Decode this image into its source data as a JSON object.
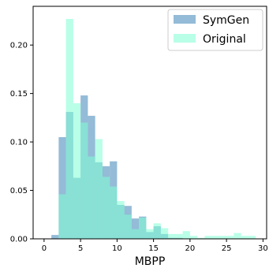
{
  "chart_data": {
    "type": "bar",
    "subtype": "overlaid-histogram",
    "xlabel": "MBPP",
    "ylabel": "",
    "xlim": [
      -1.5,
      30.5
    ],
    "ylim": [
      0,
      0.24
    ],
    "xticks": [
      0,
      5,
      10,
      15,
      20,
      25,
      30
    ],
    "yticks": [
      0.0,
      0.05,
      0.1,
      0.15,
      0.2
    ],
    "grid": false,
    "legend_position": "top-right",
    "bin_width": 1,
    "series": [
      {
        "name": "SymGen",
        "color": "#5b97c2",
        "opacity": 0.65,
        "bins": [
          {
            "x0": 1,
            "value": 0.004
          },
          {
            "x0": 2,
            "value": 0.105
          },
          {
            "x0": 3,
            "value": 0.131
          },
          {
            "x0": 4,
            "value": 0.063
          },
          {
            "x0": 5,
            "value": 0.148
          },
          {
            "x0": 6,
            "value": 0.127
          },
          {
            "x0": 7,
            "value": 0.079
          },
          {
            "x0": 8,
            "value": 0.075
          },
          {
            "x0": 9,
            "value": 0.08
          },
          {
            "x0": 10,
            "value": 0.035
          },
          {
            "x0": 11,
            "value": 0.034
          },
          {
            "x0": 12,
            "value": 0.021
          },
          {
            "x0": 13,
            "value": 0.023
          },
          {
            "x0": 14,
            "value": 0.007
          },
          {
            "x0": 15,
            "value": 0.013
          },
          {
            "x0": 16,
            "value": 0.005
          },
          {
            "x0": 17,
            "value": 0.001
          },
          {
            "x0": 18,
            "value": 0.001
          }
        ]
      },
      {
        "name": "Original",
        "color": "#7fffd4",
        "opacity": 0.55,
        "bins": [
          {
            "x0": 2,
            "value": 0.046
          },
          {
            "x0": 3,
            "value": 0.227
          },
          {
            "x0": 4,
            "value": 0.14
          },
          {
            "x0": 5,
            "value": 0.12
          },
          {
            "x0": 6,
            "value": 0.085
          },
          {
            "x0": 7,
            "value": 0.103
          },
          {
            "x0": 8,
            "value": 0.064
          },
          {
            "x0": 9,
            "value": 0.054
          },
          {
            "x0": 10,
            "value": 0.039
          },
          {
            "x0": 11,
            "value": 0.025
          },
          {
            "x0": 12,
            "value": 0.01
          },
          {
            "x0": 13,
            "value": 0.022
          },
          {
            "x0": 14,
            "value": 0.01
          },
          {
            "x0": 15,
            "value": 0.016
          },
          {
            "x0": 16,
            "value": 0.011
          },
          {
            "x0": 17,
            "value": 0.005
          },
          {
            "x0": 18,
            "value": 0.005
          },
          {
            "x0": 19,
            "value": 0.008
          },
          {
            "x0": 20,
            "value": 0.003
          },
          {
            "x0": 21,
            "value": 0.001
          },
          {
            "x0": 22,
            "value": 0.003
          },
          {
            "x0": 23,
            "value": 0.003
          },
          {
            "x0": 24,
            "value": 0.003
          },
          {
            "x0": 25,
            "value": 0.003
          },
          {
            "x0": 26,
            "value": 0.006
          },
          {
            "x0": 27,
            "value": 0.003
          },
          {
            "x0": 28,
            "value": 0.003
          }
        ]
      }
    ]
  }
}
